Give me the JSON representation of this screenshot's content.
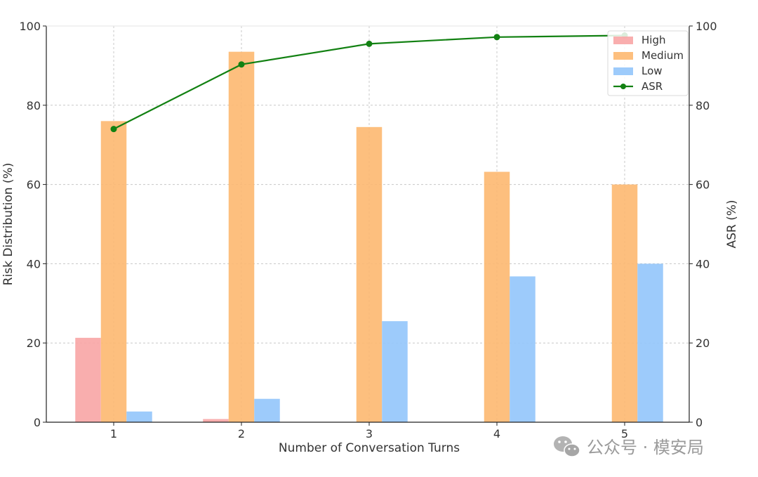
{
  "chart_data": {
    "type": "bar",
    "xlabel": "Number of Conversation Turns",
    "ylabel": "Risk Distribution (%)",
    "y2label": "ASR (%)",
    "ylim": [
      0,
      100
    ],
    "y2lim": [
      0,
      100
    ],
    "yticks": [
      "0",
      "20",
      "40",
      "60",
      "80",
      "100"
    ],
    "categories": [
      "1",
      "2",
      "3",
      "4",
      "5"
    ],
    "grid": true,
    "legend_position": "top-right",
    "series": [
      {
        "name": "High",
        "type": "bar",
        "color": "#f8a5a5",
        "values": [
          21.3,
          0.8,
          0,
          0,
          0
        ]
      },
      {
        "name": "Medium",
        "type": "bar",
        "color": "#fdb870",
        "values": [
          76,
          93.5,
          74.5,
          63.2,
          60
        ]
      },
      {
        "name": "Low",
        "type": "bar",
        "color": "#92c5fb",
        "values": [
          2.7,
          5.9,
          25.5,
          36.8,
          40
        ]
      },
      {
        "name": "ASR",
        "type": "line",
        "axis": "right",
        "color": "#128112",
        "values": [
          74,
          90.3,
          95.5,
          97.2,
          97.6
        ]
      }
    ]
  },
  "watermark": {
    "text": "公众号 · 模安局",
    "icon": "wechat-icon"
  }
}
